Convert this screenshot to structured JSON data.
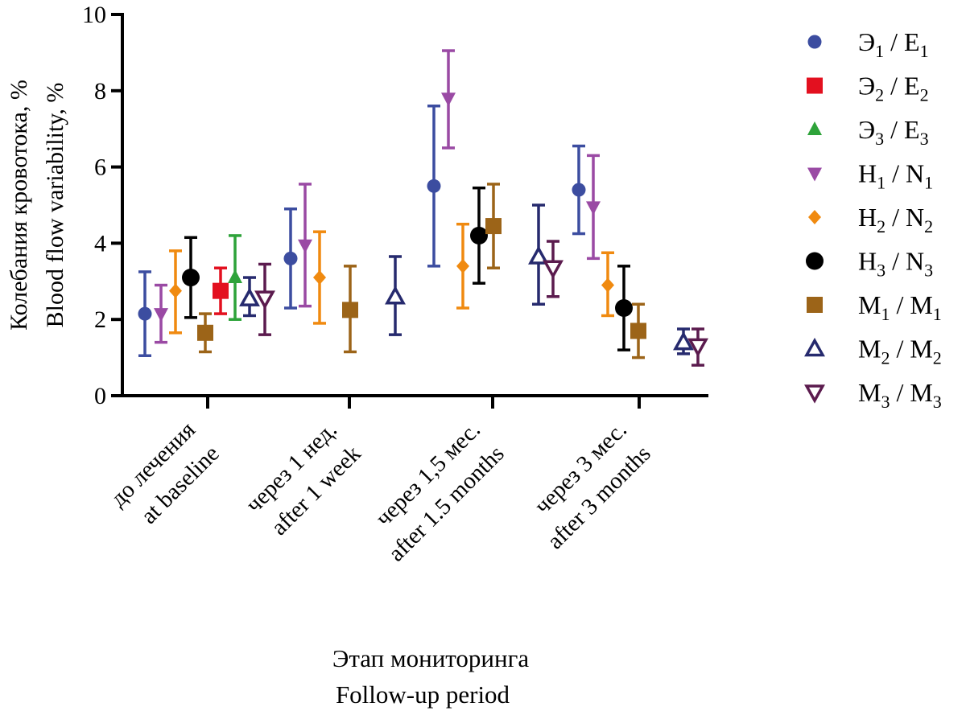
{
  "chart_data": {
    "type": "scatter",
    "subtype": "grouped-points-with-error-bars",
    "ylabel": [
      "Колебания кровотока, %",
      "Blood flow variability, %"
    ],
    "xlabel": [
      "Этап мониторинга",
      "Follow-up period"
    ],
    "ylim": [
      0,
      10
    ],
    "yticks": [
      "0",
      "2",
      "4",
      "6",
      "8",
      "10"
    ],
    "categories": [
      [
        "до лечения",
        "at baseline"
      ],
      [
        "через 1 нед.",
        "after 1 week"
      ],
      [
        "через 1,5 мес.",
        "after 1.5 months"
      ],
      [
        "через 3 мес.",
        "after 3 months"
      ]
    ],
    "series": [
      {
        "name": "Э1 / E1",
        "label": {
          "a": "Э",
          "as": "1",
          "b": "E",
          "bs": "1"
        },
        "color": "#3c4da0",
        "marker": "circle",
        "points": [
          {
            "cat": 0,
            "offset": -78,
            "y": 2.15,
            "lo": 1.05,
            "hi": 3.25
          },
          {
            "cat": 1,
            "offset": -73,
            "y": 3.6,
            "lo": 2.3,
            "hi": 4.9
          },
          {
            "cat": 2,
            "offset": -73,
            "y": 5.5,
            "lo": 3.4,
            "hi": 7.6
          },
          {
            "cat": 3,
            "offset": -75,
            "y": 5.4,
            "lo": 4.25,
            "hi": 6.55
          }
        ]
      },
      {
        "name": "Э2 / E2",
        "label": {
          "a": "Э",
          "as": "2",
          "b": "E",
          "bs": "2"
        },
        "color": "#e3101f",
        "marker": "square",
        "points": [
          {
            "cat": 0,
            "offset": 16,
            "y": 2.75,
            "lo": 2.15,
            "hi": 3.35
          }
        ]
      },
      {
        "name": "Э3 / E3",
        "label": {
          "a": "Э",
          "as": "3",
          "b": "E",
          "bs": "3"
        },
        "color": "#2ea33a",
        "marker": "triangle-up",
        "points": [
          {
            "cat": 0,
            "offset": 34,
            "y": 3.1,
            "lo": 2.0,
            "hi": 4.2
          }
        ]
      },
      {
        "name": "Н1 / N1",
        "label": {
          "a": "Н",
          "as": "1",
          "b": "N",
          "bs": "1"
        },
        "color": "#9a4aa4",
        "marker": "triangle-down",
        "points": [
          {
            "cat": 0,
            "offset": -58,
            "y": 2.15,
            "lo": 1.4,
            "hi": 2.9
          },
          {
            "cat": 1,
            "offset": -55,
            "y": 3.95,
            "lo": 2.35,
            "hi": 5.55
          },
          {
            "cat": 2,
            "offset": -55,
            "y": 7.8,
            "lo": 6.5,
            "hi": 9.05
          },
          {
            "cat": 3,
            "offset": -57,
            "y": 4.95,
            "lo": 3.6,
            "hi": 6.3
          }
        ]
      },
      {
        "name": "Н2 / N2",
        "label": {
          "a": "Н",
          "as": "2",
          "b": "N",
          "bs": "2"
        },
        "color": "#f08a10",
        "marker": "diamond",
        "points": [
          {
            "cat": 0,
            "offset": -40,
            "y": 2.75,
            "lo": 1.65,
            "hi": 3.8
          },
          {
            "cat": 1,
            "offset": -37,
            "y": 3.1,
            "lo": 1.9,
            "hi": 4.3
          },
          {
            "cat": 2,
            "offset": -37,
            "y": 3.4,
            "lo": 2.3,
            "hi": 4.5
          },
          {
            "cat": 3,
            "offset": -39,
            "y": 2.9,
            "lo": 2.1,
            "hi": 3.75
          }
        ]
      },
      {
        "name": "Н3 / N3",
        "label": {
          "a": "Н",
          "as": "3",
          "b": "N",
          "bs": "3"
        },
        "color": "#000000",
        "marker": "circle",
        "points": [
          {
            "cat": 0,
            "offset": -21,
            "y": 3.1,
            "lo": 2.05,
            "hi": 4.15
          },
          {
            "cat": 2,
            "offset": -17,
            "y": 4.2,
            "lo": 2.95,
            "hi": 5.45
          },
          {
            "cat": 3,
            "offset": -19,
            "y": 2.3,
            "lo": 1.2,
            "hi": 3.4
          }
        ]
      },
      {
        "name": "М1 / М1",
        "label": {
          "a": "М",
          "as": "1",
          "b": "М",
          "bs": "1"
        },
        "color": "#9c6418",
        "marker": "square",
        "points": [
          {
            "cat": 0,
            "offset": -3,
            "y": 1.65,
            "lo": 1.15,
            "hi": 2.15
          },
          {
            "cat": 1,
            "offset": 1,
            "y": 2.25,
            "lo": 1.15,
            "hi": 3.4
          },
          {
            "cat": 2,
            "offset": 1,
            "y": 4.45,
            "lo": 3.35,
            "hi": 5.55
          },
          {
            "cat": 3,
            "offset": -1,
            "y": 1.7,
            "lo": 1.0,
            "hi": 2.4
          }
        ]
      },
      {
        "name": "М2 / М2",
        "label": {
          "a": "М",
          "as": "2",
          "b": "М",
          "bs": "2"
        },
        "color": "#262a6e",
        "marker": "triangle-up-open",
        "points": [
          {
            "cat": 0,
            "offset": 52,
            "y": 2.55,
            "lo": 2.1,
            "hi": 3.1
          },
          {
            "cat": 1,
            "offset": 57,
            "y": 2.6,
            "lo": 1.6,
            "hi": 3.65
          },
          {
            "cat": 2,
            "offset": 57,
            "y": 3.65,
            "lo": 2.4,
            "hi": 5.0
          },
          {
            "cat": 3,
            "offset": 55,
            "y": 1.4,
            "lo": 1.1,
            "hi": 1.75
          }
        ]
      },
      {
        "name": "М3 / М3",
        "label": {
          "a": "М",
          "as": "3",
          "b": "М",
          "bs": "3"
        },
        "color": "#5b1b4e",
        "marker": "triangle-down-open",
        "points": [
          {
            "cat": 0,
            "offset": 71,
            "y": 2.55,
            "lo": 1.6,
            "hi": 3.45
          },
          {
            "cat": 2,
            "offset": 75,
            "y": 3.35,
            "lo": 2.6,
            "hi": 4.05
          },
          {
            "cat": 3,
            "offset": 73,
            "y": 1.3,
            "lo": 0.8,
            "hi": 1.75
          }
        ]
      }
    ]
  }
}
